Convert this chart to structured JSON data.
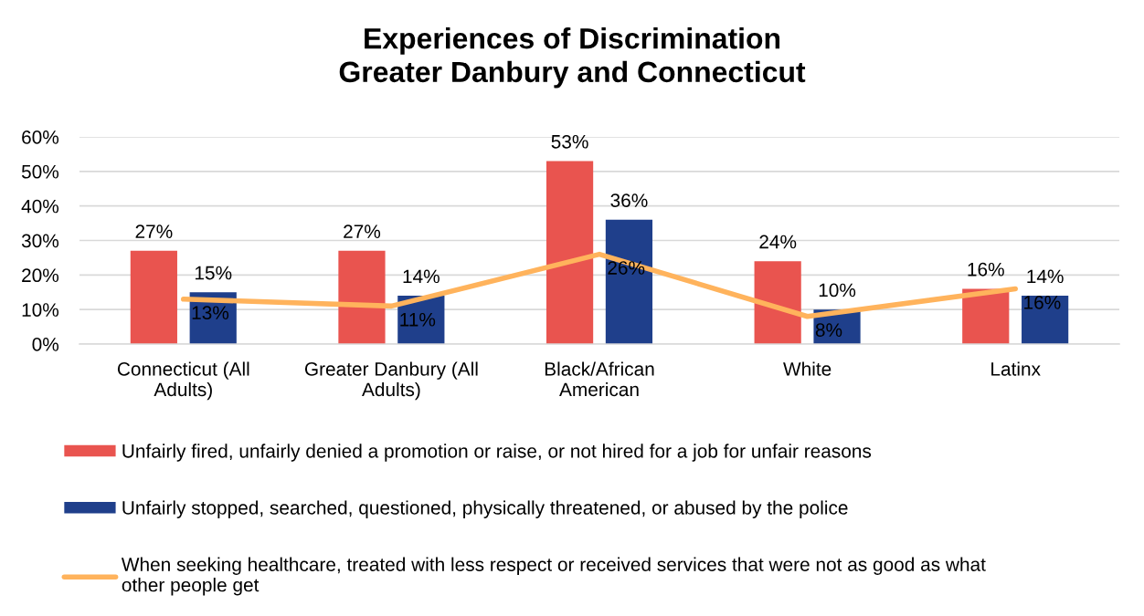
{
  "chart_data": {
    "type": "bar",
    "title": "Experiences of Discrimination\nGreater Danbury and Connecticut",
    "categories": [
      "Connecticut (All\nAdults)",
      "Greater Danbury (All\nAdults)",
      "Black/African\nAmerican",
      "White",
      "Latinx"
    ],
    "series": [
      {
        "name": "Unfairly fired, unfairly denied a promotion or raise, or not hired for a job for unfair reasons",
        "color": "#e9544f",
        "values": [
          27,
          27,
          53,
          24,
          16
        ],
        "value_labels": [
          "27%",
          "27%",
          "53%",
          "24%",
          "16%"
        ]
      },
      {
        "name": "Unfairly stopped, searched, questioned, physically threatened, or abused by the police",
        "color": "#1f3f8b",
        "values": [
          15,
          14,
          36,
          10,
          14
        ],
        "value_labels": [
          "15%",
          "14%",
          "36%",
          "10%",
          "14%"
        ]
      },
      {
        "name": "When seeking healthcare, treated with less respect or received services that were not as good as what\nother people get",
        "type": "line",
        "color": "#ffb35c",
        "values": [
          13,
          11,
          26,
          8,
          16
        ],
        "value_labels": [
          "13%",
          "11%",
          "26%",
          "8%",
          "16%"
        ]
      }
    ],
    "ylim": [
      0,
      60
    ],
    "yticks": [
      {
        "value": 0,
        "label": "0%"
      },
      {
        "value": 10,
        "label": "10%"
      },
      {
        "value": 20,
        "label": "20%"
      },
      {
        "value": 30,
        "label": "30%"
      },
      {
        "value": 40,
        "label": "40%"
      },
      {
        "value": 50,
        "label": "50%"
      },
      {
        "value": 60,
        "label": "60%"
      }
    ],
    "grid": "y",
    "legend": "bottom"
  }
}
